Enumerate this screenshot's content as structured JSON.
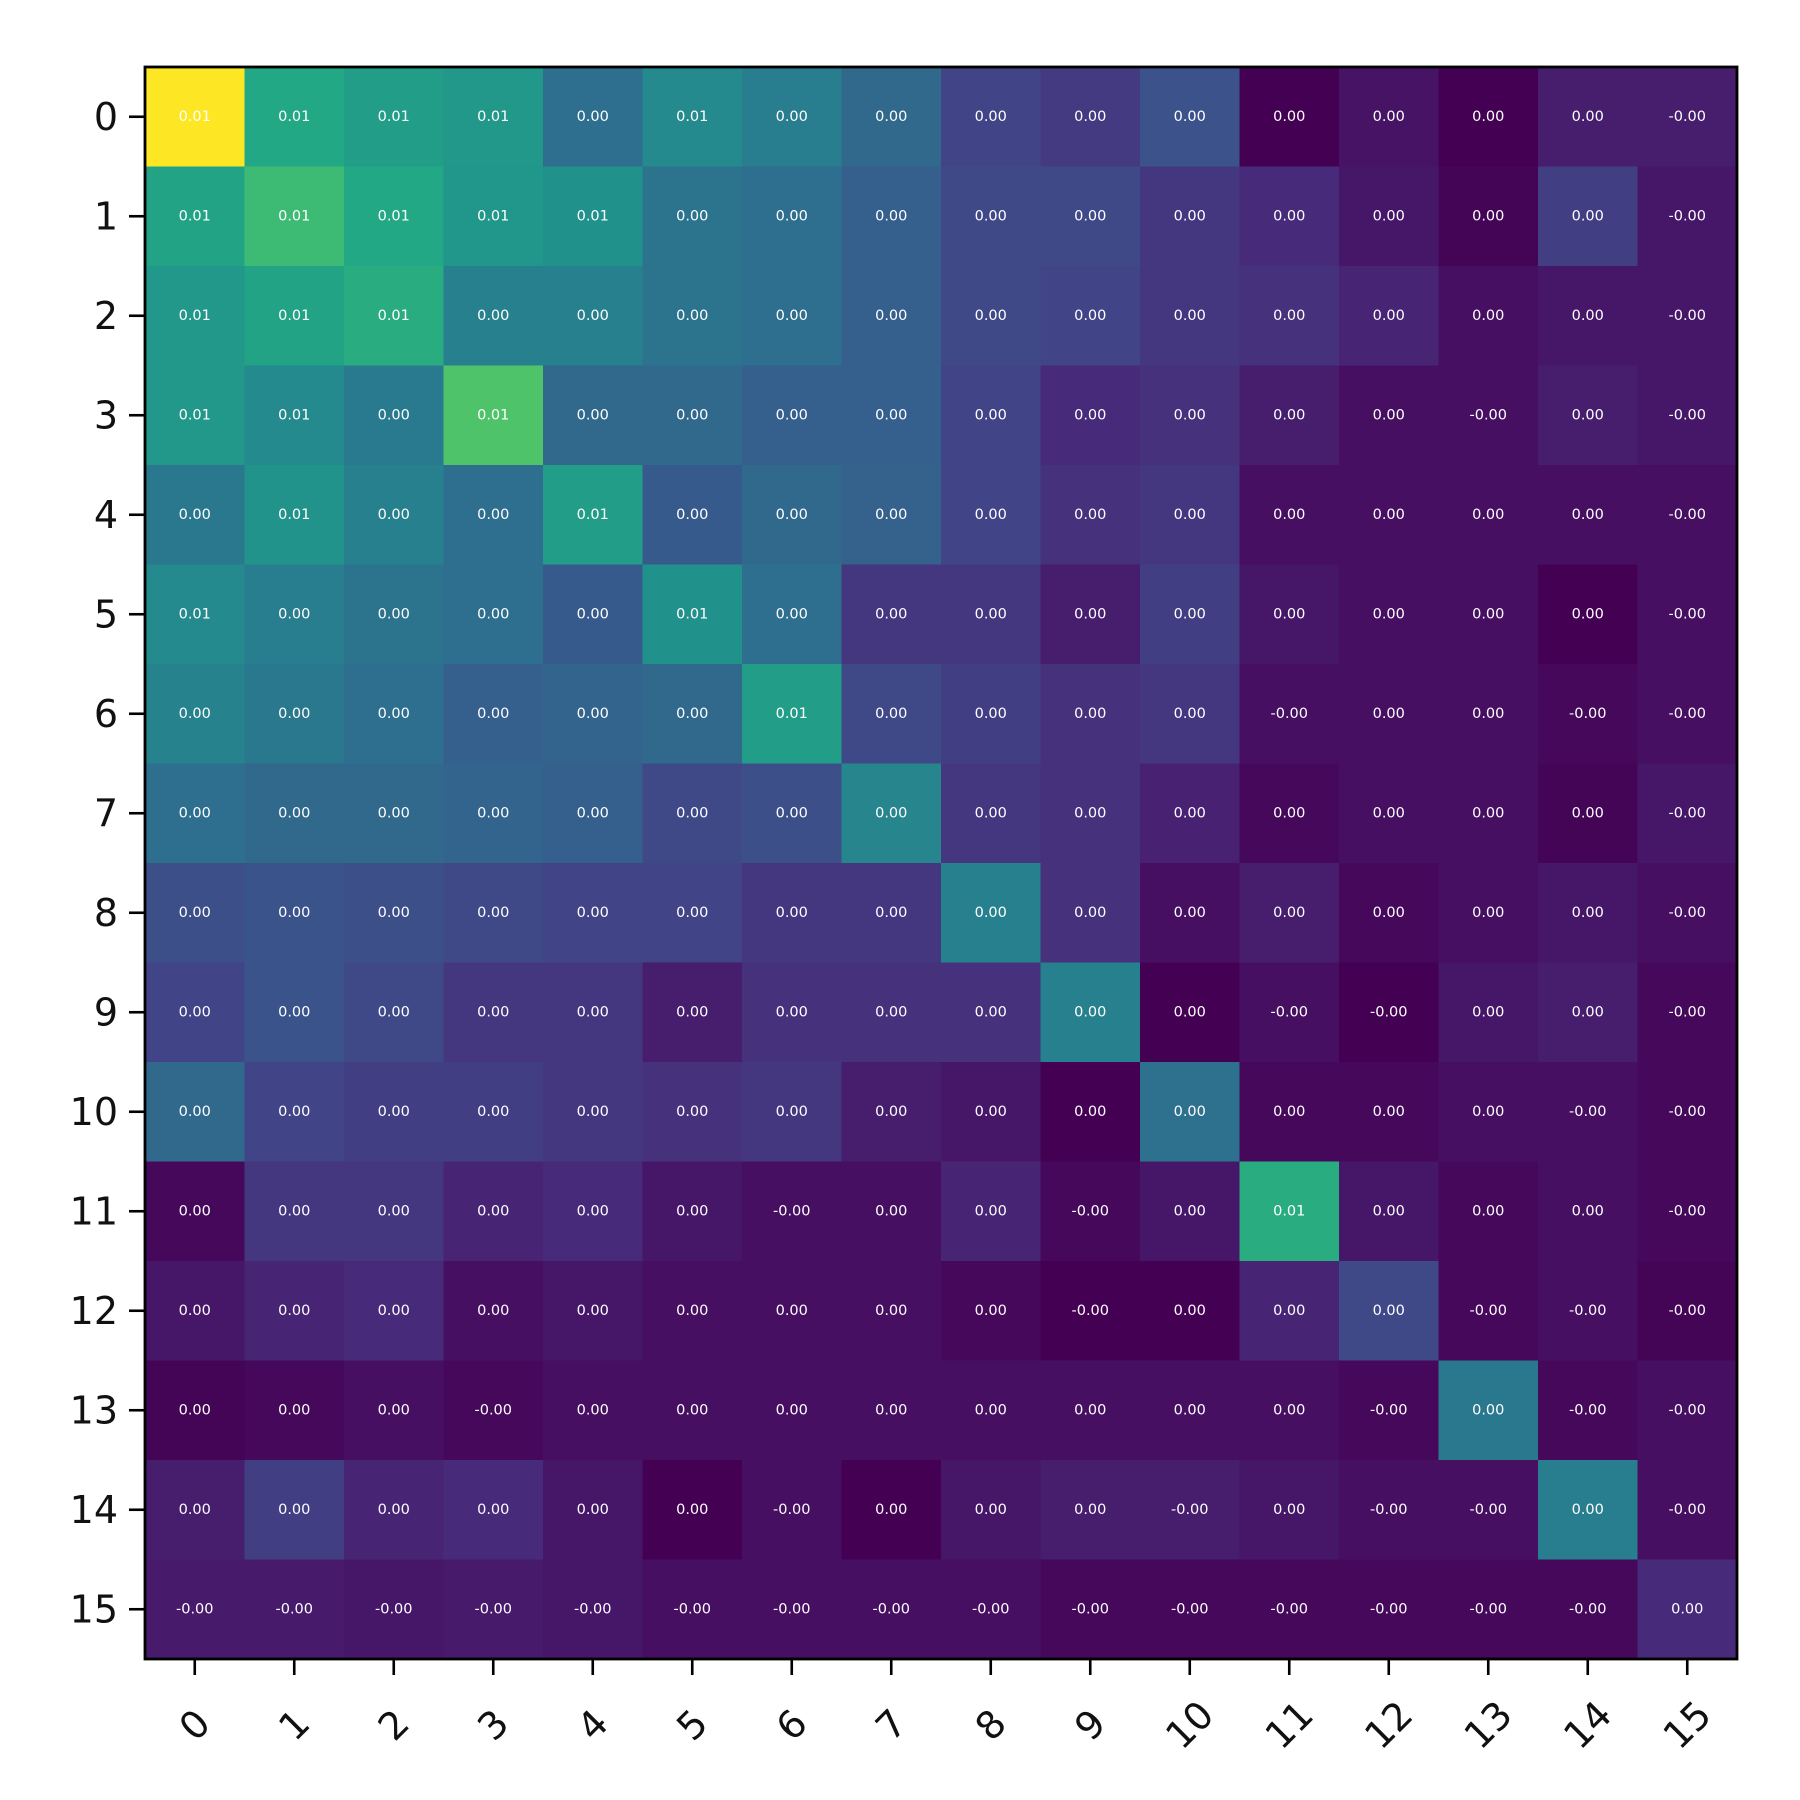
{
  "chart_data": {
    "type": "heatmap",
    "title": "",
    "xlabel": "",
    "ylabel": "",
    "colormap": "viridis",
    "colorbar": false,
    "grid": false,
    "x_tick_rotation_deg": 45,
    "x_categories": [
      "0",
      "1",
      "2",
      "3",
      "4",
      "5",
      "6",
      "7",
      "8",
      "9",
      "10",
      "11",
      "12",
      "13",
      "14",
      "15"
    ],
    "y_categories": [
      "0",
      "1",
      "2",
      "3",
      "4",
      "5",
      "6",
      "7",
      "8",
      "9",
      "10",
      "11",
      "12",
      "13",
      "14",
      "15"
    ],
    "color_intensity": [
      [
        1.0,
        0.6,
        0.55,
        0.53,
        0.36,
        0.47,
        0.42,
        0.34,
        0.2,
        0.17,
        0.25,
        0.0,
        0.05,
        0.0,
        0.08,
        0.08
      ],
      [
        0.58,
        0.68,
        0.6,
        0.52,
        0.5,
        0.38,
        0.36,
        0.3,
        0.22,
        0.22,
        0.16,
        0.12,
        0.06,
        0.01,
        0.18,
        0.06
      ],
      [
        0.53,
        0.58,
        0.62,
        0.43,
        0.43,
        0.38,
        0.36,
        0.3,
        0.22,
        0.2,
        0.16,
        0.14,
        0.1,
        0.04,
        0.06,
        0.06
      ],
      [
        0.53,
        0.47,
        0.41,
        0.72,
        0.34,
        0.34,
        0.3,
        0.3,
        0.2,
        0.12,
        0.14,
        0.08,
        0.04,
        0.04,
        0.08,
        0.06
      ],
      [
        0.4,
        0.51,
        0.43,
        0.36,
        0.55,
        0.28,
        0.34,
        0.31,
        0.2,
        0.14,
        0.16,
        0.04,
        0.04,
        0.04,
        0.04,
        0.04
      ],
      [
        0.47,
        0.42,
        0.38,
        0.36,
        0.28,
        0.5,
        0.36,
        0.16,
        0.16,
        0.08,
        0.18,
        0.06,
        0.04,
        0.04,
        0.0,
        0.04
      ],
      [
        0.44,
        0.4,
        0.36,
        0.3,
        0.32,
        0.34,
        0.55,
        0.22,
        0.18,
        0.14,
        0.16,
        0.04,
        0.04,
        0.04,
        0.02,
        0.04
      ],
      [
        0.36,
        0.34,
        0.34,
        0.32,
        0.3,
        0.22,
        0.24,
        0.45,
        0.16,
        0.14,
        0.09,
        0.02,
        0.04,
        0.04,
        0.01,
        0.06
      ],
      [
        0.24,
        0.26,
        0.24,
        0.22,
        0.2,
        0.2,
        0.16,
        0.16,
        0.43,
        0.14,
        0.04,
        0.08,
        0.02,
        0.04,
        0.06,
        0.04
      ],
      [
        0.2,
        0.26,
        0.22,
        0.16,
        0.16,
        0.08,
        0.14,
        0.14,
        0.14,
        0.43,
        0.0,
        0.04,
        0.0,
        0.06,
        0.08,
        0.02
      ],
      [
        0.34,
        0.2,
        0.18,
        0.18,
        0.16,
        0.14,
        0.16,
        0.08,
        0.06,
        0.0,
        0.37,
        0.02,
        0.02,
        0.04,
        0.04,
        0.02
      ],
      [
        0.02,
        0.16,
        0.16,
        0.1,
        0.12,
        0.06,
        0.04,
        0.04,
        0.1,
        0.02,
        0.06,
        0.62,
        0.06,
        0.02,
        0.04,
        0.02
      ],
      [
        0.06,
        0.1,
        0.12,
        0.04,
        0.06,
        0.04,
        0.04,
        0.04,
        0.02,
        0.0,
        0.0,
        0.1,
        0.22,
        0.02,
        0.04,
        0.01
      ],
      [
        0.01,
        0.02,
        0.04,
        0.02,
        0.04,
        0.04,
        0.04,
        0.04,
        0.04,
        0.04,
        0.04,
        0.04,
        0.02,
        0.4,
        0.02,
        0.04
      ],
      [
        0.08,
        0.18,
        0.1,
        0.12,
        0.06,
        0.0,
        0.04,
        0.0,
        0.06,
        0.08,
        0.08,
        0.06,
        0.04,
        0.04,
        0.42,
        0.04
      ],
      [
        0.07,
        0.07,
        0.06,
        0.07,
        0.06,
        0.04,
        0.04,
        0.04,
        0.04,
        0.02,
        0.02,
        0.02,
        0.02,
        0.02,
        0.02,
        0.12
      ]
    ],
    "cell_labels": [
      [
        "0.01",
        "0.01",
        "0.01",
        "0.01",
        "0.00",
        "0.01",
        "0.00",
        "0.00",
        "0.00",
        "0.00",
        "0.00",
        "0.00",
        "0.00",
        "0.00",
        "0.00",
        "-0.00"
      ],
      [
        "0.01",
        "0.01",
        "0.01",
        "0.01",
        "0.01",
        "0.00",
        "0.00",
        "0.00",
        "0.00",
        "0.00",
        "0.00",
        "0.00",
        "0.00",
        "0.00",
        "0.00",
        "-0.00"
      ],
      [
        "0.01",
        "0.01",
        "0.01",
        "0.00",
        "0.00",
        "0.00",
        "0.00",
        "0.00",
        "0.00",
        "0.00",
        "0.00",
        "0.00",
        "0.00",
        "0.00",
        "0.00",
        "-0.00"
      ],
      [
        "0.01",
        "0.01",
        "0.00",
        "0.01",
        "0.00",
        "0.00",
        "0.00",
        "0.00",
        "0.00",
        "0.00",
        "0.00",
        "0.00",
        "0.00",
        "-0.00",
        "0.00",
        "-0.00"
      ],
      [
        "0.00",
        "0.01",
        "0.00",
        "0.00",
        "0.01",
        "0.00",
        "0.00",
        "0.00",
        "0.00",
        "0.00",
        "0.00",
        "0.00",
        "0.00",
        "0.00",
        "0.00",
        "-0.00"
      ],
      [
        "0.01",
        "0.00",
        "0.00",
        "0.00",
        "0.00",
        "0.01",
        "0.00",
        "0.00",
        "0.00",
        "0.00",
        "0.00",
        "0.00",
        "0.00",
        "0.00",
        "0.00",
        "-0.00"
      ],
      [
        "0.00",
        "0.00",
        "0.00",
        "0.00",
        "0.00",
        "0.00",
        "0.01",
        "0.00",
        "0.00",
        "0.00",
        "0.00",
        "-0.00",
        "0.00",
        "0.00",
        "-0.00",
        "-0.00"
      ],
      [
        "0.00",
        "0.00",
        "0.00",
        "0.00",
        "0.00",
        "0.00",
        "0.00",
        "0.00",
        "0.00",
        "0.00",
        "0.00",
        "0.00",
        "0.00",
        "0.00",
        "0.00",
        "-0.00"
      ],
      [
        "0.00",
        "0.00",
        "0.00",
        "0.00",
        "0.00",
        "0.00",
        "0.00",
        "0.00",
        "0.00",
        "0.00",
        "0.00",
        "0.00",
        "0.00",
        "0.00",
        "0.00",
        "-0.00"
      ],
      [
        "0.00",
        "0.00",
        "0.00",
        "0.00",
        "0.00",
        "0.00",
        "0.00",
        "0.00",
        "0.00",
        "0.00",
        "0.00",
        "-0.00",
        "-0.00",
        "0.00",
        "0.00",
        "-0.00"
      ],
      [
        "0.00",
        "0.00",
        "0.00",
        "0.00",
        "0.00",
        "0.00",
        "0.00",
        "0.00",
        "0.00",
        "0.00",
        "0.00",
        "0.00",
        "0.00",
        "0.00",
        "-0.00",
        "-0.00"
      ],
      [
        "0.00",
        "0.00",
        "0.00",
        "0.00",
        "0.00",
        "0.00",
        "-0.00",
        "0.00",
        "0.00",
        "-0.00",
        "0.00",
        "0.01",
        "0.00",
        "0.00",
        "0.00",
        "-0.00"
      ],
      [
        "0.00",
        "0.00",
        "0.00",
        "0.00",
        "0.00",
        "0.00",
        "0.00",
        "0.00",
        "0.00",
        "-0.00",
        "0.00",
        "0.00",
        "0.00",
        "-0.00",
        "-0.00",
        "-0.00"
      ],
      [
        "0.00",
        "0.00",
        "0.00",
        "-0.00",
        "0.00",
        "0.00",
        "0.00",
        "0.00",
        "0.00",
        "0.00",
        "0.00",
        "0.00",
        "-0.00",
        "0.00",
        "-0.00",
        "-0.00"
      ],
      [
        "0.00",
        "0.00",
        "0.00",
        "0.00",
        "0.00",
        "0.00",
        "-0.00",
        "0.00",
        "0.00",
        "0.00",
        "-0.00",
        "0.00",
        "-0.00",
        "-0.00",
        "0.00",
        "-0.00"
      ],
      [
        "-0.00",
        "-0.00",
        "-0.00",
        "-0.00",
        "-0.00",
        "-0.00",
        "-0.00",
        "-0.00",
        "-0.00",
        "-0.00",
        "-0.00",
        "-0.00",
        "-0.00",
        "-0.00",
        "-0.00",
        "0.00"
      ]
    ]
  }
}
